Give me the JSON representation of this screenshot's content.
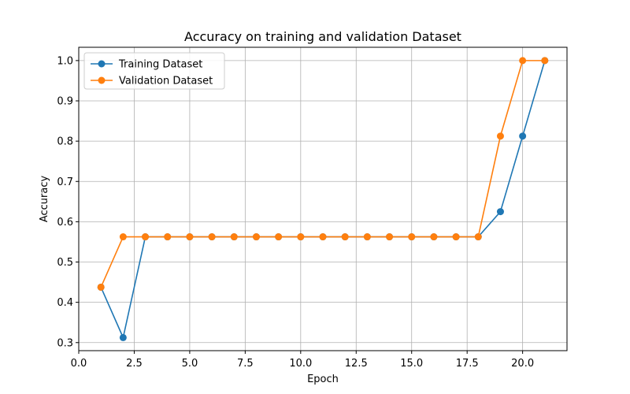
{
  "chart_data": {
    "type": "line",
    "title": "Accuracy on training and validation Dataset",
    "xlabel": "Epoch",
    "ylabel": "Accuracy",
    "xlim": [
      0.0,
      22.0
    ],
    "ylim": [
      0.28,
      1.033
    ],
    "xticks": [
      0.0,
      2.5,
      5.0,
      7.5,
      10.0,
      12.5,
      15.0,
      17.5,
      20.0
    ],
    "xtick_labels": [
      "0.0",
      "2.5",
      "5.0",
      "7.5",
      "10.0",
      "12.5",
      "15.0",
      "17.5",
      "20.0"
    ],
    "yticks": [
      0.3,
      0.4,
      0.5,
      0.6,
      0.7,
      0.8,
      0.9,
      1.0
    ],
    "ytick_labels": [
      "0.3",
      "0.4",
      "0.5",
      "0.6",
      "0.7",
      "0.8",
      "0.9",
      "1.0"
    ],
    "grid": true,
    "legend_position": "upper-left",
    "x": [
      1,
      2,
      3,
      4,
      5,
      6,
      7,
      8,
      9,
      10,
      11,
      12,
      13,
      14,
      15,
      16,
      17,
      18,
      19,
      20,
      21
    ],
    "series": [
      {
        "name": "Training Dataset",
        "color": "#1f77b4",
        "values": [
          0.4375,
          0.3125,
          0.5625,
          0.5625,
          0.5625,
          0.5625,
          0.5625,
          0.5625,
          0.5625,
          0.5625,
          0.5625,
          0.5625,
          0.5625,
          0.5625,
          0.5625,
          0.5625,
          0.5625,
          0.5625,
          0.625,
          0.8125,
          1.0
        ]
      },
      {
        "name": "Validation Dataset",
        "color": "#ff7f0e",
        "values": [
          0.4375,
          0.5625,
          0.5625,
          0.5625,
          0.5625,
          0.5625,
          0.5625,
          0.5625,
          0.5625,
          0.5625,
          0.5625,
          0.5625,
          0.5625,
          0.5625,
          0.5625,
          0.5625,
          0.5625,
          0.5625,
          0.8125,
          1.0,
          1.0
        ]
      }
    ]
  }
}
